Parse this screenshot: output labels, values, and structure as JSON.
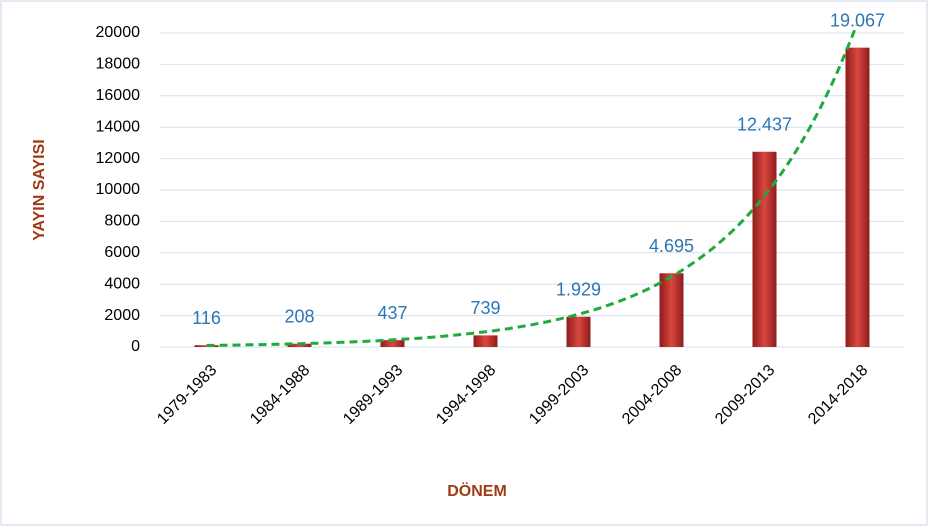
{
  "chart_data": {
    "type": "bar",
    "categories": [
      "1979-1983",
      "1984-1988",
      "1989-1993",
      "1994-1998",
      "1999-2003",
      "2004-2008",
      "2009-2013",
      "2014-2018"
    ],
    "values": [
      116,
      208,
      437,
      739,
      1929,
      4695,
      12437,
      19067
    ],
    "value_labels": [
      "116",
      "208",
      "437",
      "739",
      "1.929",
      "4.695",
      "12.437",
      "19.067"
    ],
    "color": "#c0302e",
    "x_label": "DÖNEM",
    "y_label": "YAYIN SAYISI",
    "ylim": [
      0,
      20000
    ],
    "yticks": [
      0,
      2000,
      4000,
      6000,
      8000,
      10000,
      12000,
      14000,
      16000,
      18000,
      20000
    ],
    "grid": true,
    "trendline": "exponential",
    "trendline_color": "#1faa3c"
  }
}
